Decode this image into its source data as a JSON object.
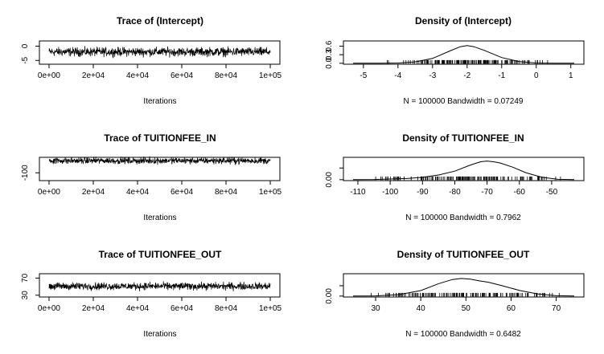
{
  "chart_data": [
    {
      "type": "line",
      "kind": "trace",
      "title": "Trace of (Intercept)",
      "xlabel": "Iterations",
      "ylabel": "",
      "xlim": [
        0,
        100000
      ],
      "ylim": [
        -6,
        1.5
      ],
      "x_ticks": [
        0,
        20000,
        40000,
        60000,
        80000,
        100000
      ],
      "x_tick_labels": [
        "0e+00",
        "2e+04",
        "4e+04",
        "6e+04",
        "8e+04",
        "1e+05"
      ],
      "y_ticks": [
        -5,
        0
      ],
      "y_tick_labels": [
        "-5",
        "0"
      ],
      "series": [
        {
          "center": -2.0,
          "band_low": -4.3,
          "band_high": 0.3
        }
      ]
    },
    {
      "type": "line",
      "kind": "density",
      "title": "Density of (Intercept)",
      "xlabel": "N = 100000   Bandwidth = 0.07249",
      "ylabel": "",
      "xlim": [
        -5.3,
        1.1
      ],
      "ylim": [
        0,
        0.75
      ],
      "x_ticks": [
        -5,
        -4,
        -3,
        -2,
        -1,
        0,
        1
      ],
      "x_tick_labels": [
        "-5",
        "-4",
        "-3",
        "-2",
        "-1",
        "0",
        "1"
      ],
      "y_ticks": [
        0.0,
        0.3,
        0.6
      ],
      "y_tick_labels": [
        "0.0",
        "0.3",
        "0.6"
      ],
      "series": [
        {
          "x": [
            -5.3,
            -4.5,
            -4.0,
            -3.5,
            -3.0,
            -2.5,
            -2.2,
            -2.0,
            -1.8,
            -1.5,
            -1.0,
            -0.5,
            0.0,
            0.5,
            1.1
          ],
          "y": [
            0.0,
            0.002,
            0.01,
            0.05,
            0.17,
            0.43,
            0.58,
            0.62,
            0.58,
            0.45,
            0.2,
            0.06,
            0.01,
            0.002,
            0.0
          ]
        }
      ],
      "rug_range": [
        -4.6,
        0.6
      ]
    },
    {
      "type": "line",
      "kind": "trace",
      "title": "Trace of TUITIONFEE_IN",
      "xlabel": "Iterations",
      "ylabel": "",
      "xlim": [
        0,
        100000
      ],
      "ylim": [
        -117,
        -64
      ],
      "x_ticks": [
        0,
        20000,
        40000,
        60000,
        80000,
        100000
      ],
      "x_tick_labels": [
        "0e+00",
        "2e+04",
        "4e+04",
        "6e+04",
        "8e+04",
        "1e+05"
      ],
      "y_ticks": [
        -100
      ],
      "y_tick_labels": [
        "-100"
      ],
      "series": [
        {
          "center": -70,
          "band_low": -82,
          "band_high": -58
        }
      ]
    },
    {
      "type": "line",
      "kind": "density",
      "title": "Density of TUITIONFEE_IN",
      "xlabel": "N = 100000   Bandwidth = 0.7962",
      "ylabel": "",
      "xlim": [
        -111.5,
        -43
      ],
      "ylim": [
        0,
        0.055
      ],
      "x_ticks": [
        -110,
        -100,
        -90,
        -80,
        -70,
        -60,
        -50
      ],
      "x_tick_labels": [
        "-110",
        "-100",
        "-90",
        "-80",
        "-70",
        "-60",
        "-50"
      ],
      "y_ticks": [
        0.0,
        0.03
      ],
      "y_tick_labels": [
        "0.00",
        ""
      ],
      "series": [
        {
          "x": [
            -111.5,
            -105,
            -95,
            -90,
            -85,
            -80,
            -75,
            -72,
            -70,
            -68,
            -66,
            -62,
            -58,
            -53,
            -48,
            -43
          ],
          "y": [
            0.0,
            0.0005,
            0.003,
            0.006,
            0.012,
            0.022,
            0.038,
            0.046,
            0.048,
            0.046,
            0.043,
            0.032,
            0.018,
            0.006,
            0.001,
            0.0
          ]
        }
      ],
      "rug_range": [
        -108,
        -46
      ]
    },
    {
      "type": "line",
      "kind": "trace",
      "title": "Trace of TUITIONFEE_OUT",
      "xlabel": "Iterations",
      "ylabel": "",
      "xlim": [
        0,
        100000
      ],
      "ylim": [
        28,
        78
      ],
      "x_ticks": [
        0,
        20000,
        40000,
        60000,
        80000,
        100000
      ],
      "x_tick_labels": [
        "0e+00",
        "2e+04",
        "4e+04",
        "6e+04",
        "8e+04",
        "1e+05"
      ],
      "y_ticks": [
        30,
        70
      ],
      "y_tick_labels": [
        "30",
        "70"
      ],
      "series": [
        {
          "center": 52,
          "band_low": 38,
          "band_high": 64
        }
      ]
    },
    {
      "type": "line",
      "kind": "density",
      "title": "Density of TUITIONFEE_OUT",
      "xlabel": "N = 100000   Bandwidth = 0.6482",
      "ylabel": "",
      "xlim": [
        25,
        74
      ],
      "ylim": [
        0,
        0.062
      ],
      "x_ticks": [
        30,
        40,
        50,
        60,
        70
      ],
      "x_tick_labels": [
        "30",
        "40",
        "50",
        "60",
        "70"
      ],
      "y_ticks": [
        0.0,
        0.03
      ],
      "y_tick_labels": [
        "0.00",
        ""
      ],
      "series": [
        {
          "x": [
            25,
            30,
            35,
            40,
            44,
            47,
            49,
            51,
            53,
            55,
            58,
            62,
            66,
            70,
            74
          ],
          "y": [
            0.0,
            0.0006,
            0.004,
            0.016,
            0.036,
            0.048,
            0.051,
            0.049,
            0.044,
            0.04,
            0.03,
            0.016,
            0.006,
            0.001,
            0.0
          ]
        }
      ],
      "rug_range": [
        27,
        72
      ]
    }
  ]
}
